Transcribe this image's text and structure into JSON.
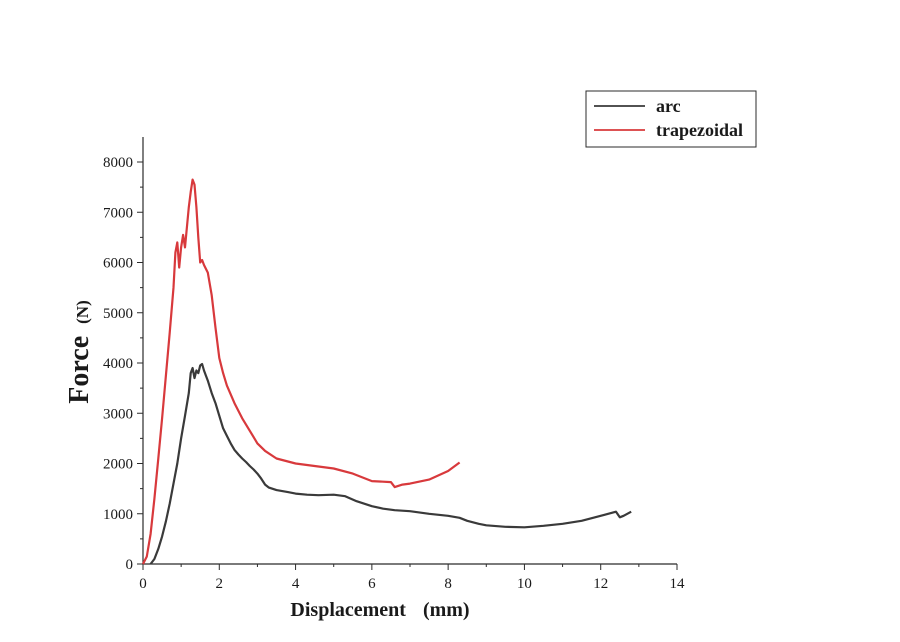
{
  "chart_data": {
    "type": "line",
    "xlabel": "Displacement",
    "xunit": "(mm)",
    "ylabel": "Force",
    "yunit": "(N)",
    "xlim": [
      0,
      14
    ],
    "ylim": [
      0,
      8000
    ],
    "xticks": [
      "0",
      "2",
      "4",
      "6",
      "8",
      "10",
      "12",
      "14"
    ],
    "yticks": [
      "0",
      "1000",
      "2000",
      "3000",
      "4000",
      "5000",
      "6000",
      "7000",
      "8000"
    ],
    "grid": false,
    "legend_position": "top-right",
    "series": [
      {
        "name": "arc",
        "color": "#3a3a3a",
        "points": [
          [
            0.2,
            0
          ],
          [
            0.3,
            100
          ],
          [
            0.4,
            300
          ],
          [
            0.5,
            550
          ],
          [
            0.6,
            850
          ],
          [
            0.7,
            1200
          ],
          [
            0.8,
            1600
          ],
          [
            0.9,
            2000
          ],
          [
            1.0,
            2500
          ],
          [
            1.1,
            2950
          ],
          [
            1.2,
            3400
          ],
          [
            1.25,
            3800
          ],
          [
            1.3,
            3900
          ],
          [
            1.35,
            3700
          ],
          [
            1.4,
            3850
          ],
          [
            1.45,
            3800
          ],
          [
            1.5,
            3950
          ],
          [
            1.55,
            3980
          ],
          [
            1.6,
            3850
          ],
          [
            1.65,
            3750
          ],
          [
            1.7,
            3650
          ],
          [
            1.8,
            3400
          ],
          [
            1.9,
            3200
          ],
          [
            2.0,
            2950
          ],
          [
            2.1,
            2700
          ],
          [
            2.2,
            2550
          ],
          [
            2.3,
            2400
          ],
          [
            2.4,
            2270
          ],
          [
            2.5,
            2180
          ],
          [
            2.6,
            2100
          ],
          [
            2.7,
            2030
          ],
          [
            2.8,
            1950
          ],
          [
            2.9,
            1880
          ],
          [
            3.0,
            1800
          ],
          [
            3.1,
            1700
          ],
          [
            3.2,
            1580
          ],
          [
            3.3,
            1520
          ],
          [
            3.5,
            1470
          ],
          [
            3.8,
            1430
          ],
          [
            4.0,
            1400
          ],
          [
            4.3,
            1380
          ],
          [
            4.6,
            1370
          ],
          [
            5.0,
            1380
          ],
          [
            5.3,
            1350
          ],
          [
            5.6,
            1250
          ],
          [
            6.0,
            1150
          ],
          [
            6.3,
            1100
          ],
          [
            6.6,
            1070
          ],
          [
            7.0,
            1050
          ],
          [
            7.5,
            1000
          ],
          [
            8.0,
            960
          ],
          [
            8.3,
            920
          ],
          [
            8.5,
            860
          ],
          [
            8.8,
            800
          ],
          [
            9.0,
            770
          ],
          [
            9.5,
            740
          ],
          [
            10.0,
            730
          ],
          [
            10.5,
            760
          ],
          [
            11.0,
            800
          ],
          [
            11.5,
            860
          ],
          [
            11.8,
            920
          ],
          [
            12.1,
            980
          ],
          [
            12.4,
            1040
          ],
          [
            12.5,
            930
          ],
          [
            12.6,
            960
          ],
          [
            12.8,
            1040
          ]
        ]
      },
      {
        "name": "trapezoidal",
        "color": "#d8393c",
        "points": [
          [
            0.0,
            0
          ],
          [
            0.1,
            150
          ],
          [
            0.2,
            600
          ],
          [
            0.3,
            1300
          ],
          [
            0.4,
            2100
          ],
          [
            0.5,
            2900
          ],
          [
            0.6,
            3750
          ],
          [
            0.7,
            4600
          ],
          [
            0.8,
            5500
          ],
          [
            0.85,
            6200
          ],
          [
            0.9,
            6400
          ],
          [
            0.95,
            5900
          ],
          [
            1.0,
            6300
          ],
          [
            1.05,
            6550
          ],
          [
            1.1,
            6300
          ],
          [
            1.15,
            6700
          ],
          [
            1.2,
            7100
          ],
          [
            1.25,
            7400
          ],
          [
            1.3,
            7650
          ],
          [
            1.35,
            7550
          ],
          [
            1.4,
            7100
          ],
          [
            1.45,
            6500
          ],
          [
            1.5,
            6000
          ],
          [
            1.55,
            6050
          ],
          [
            1.6,
            5950
          ],
          [
            1.7,
            5800
          ],
          [
            1.8,
            5350
          ],
          [
            1.9,
            4700
          ],
          [
            2.0,
            4100
          ],
          [
            2.1,
            3800
          ],
          [
            2.2,
            3550
          ],
          [
            2.4,
            3200
          ],
          [
            2.6,
            2900
          ],
          [
            2.8,
            2650
          ],
          [
            3.0,
            2400
          ],
          [
            3.2,
            2250
          ],
          [
            3.5,
            2100
          ],
          [
            4.0,
            2000
          ],
          [
            4.5,
            1950
          ],
          [
            5.0,
            1900
          ],
          [
            5.5,
            1800
          ],
          [
            6.0,
            1650
          ],
          [
            6.5,
            1630
          ],
          [
            6.6,
            1530
          ],
          [
            6.8,
            1580
          ],
          [
            7.0,
            1600
          ],
          [
            7.5,
            1680
          ],
          [
            8.0,
            1850
          ],
          [
            8.3,
            2020
          ]
        ]
      }
    ]
  }
}
